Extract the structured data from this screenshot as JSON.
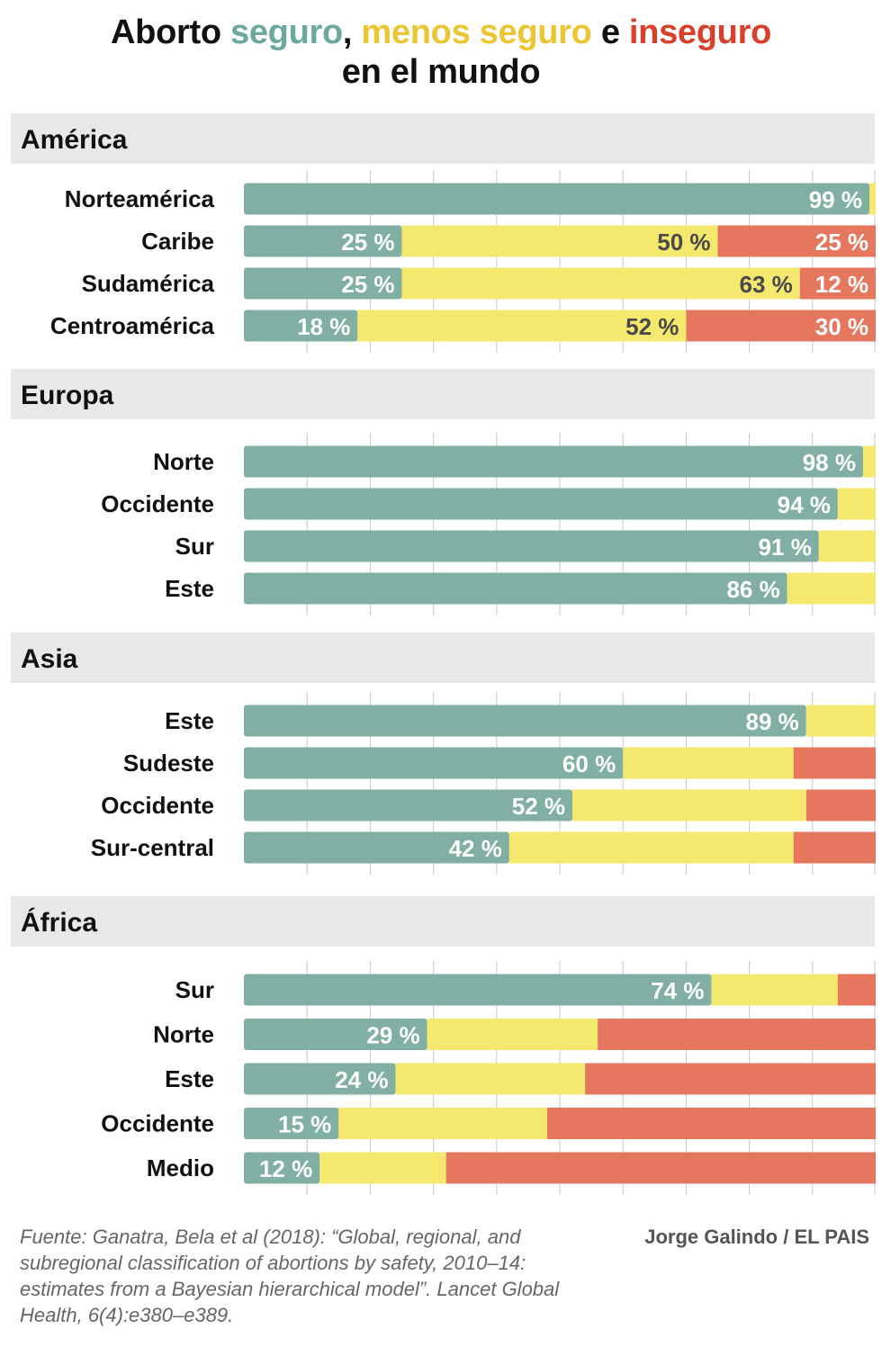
{
  "title": {
    "prefix": "Aborto ",
    "safe": "seguro",
    "sep": ", ",
    "less_safe": "menos seguro",
    "conj": " e ",
    "unsafe": "inseguro",
    "line2": "en el mundo"
  },
  "colors": {
    "safe": "#82afa3",
    "less_safe": "#f4e86e",
    "unsafe": "#e6775f",
    "band": "#e8e8e8",
    "grid": "#c8c8c8",
    "label_light": "#ffffff",
    "label_dark": "#4a4a4a"
  },
  "chart_data": {
    "type": "bar",
    "orientation": "horizontal",
    "stacked": true,
    "unit": "%",
    "xlim": [
      0,
      100
    ],
    "grid": true,
    "series": [
      {
        "name": "seguro",
        "key": "safe"
      },
      {
        "name": "menos seguro",
        "key": "less_safe"
      },
      {
        "name": "inseguro",
        "key": "unsafe"
      }
    ],
    "groups": [
      {
        "region": "América",
        "rows": [
          {
            "label": "Norteamérica",
            "safe": 99,
            "less_safe": 1,
            "unsafe": 0,
            "labels": [
              "99 %",
              "",
              ""
            ]
          },
          {
            "label": "Caribe",
            "safe": 25,
            "less_safe": 50,
            "unsafe": 25,
            "labels": [
              "25 %",
              "50 %",
              "25 %"
            ]
          },
          {
            "label": "Sudamérica",
            "safe": 25,
            "less_safe": 63,
            "unsafe": 12,
            "labels": [
              "25 %",
              "63 %",
              "12 %"
            ]
          },
          {
            "label": "Centroamérica",
            "safe": 18,
            "less_safe": 52,
            "unsafe": 30,
            "labels": [
              "18 %",
              "52 %",
              "30 %"
            ]
          }
        ]
      },
      {
        "region": "Europa",
        "rows": [
          {
            "label": "Norte",
            "safe": 98,
            "less_safe": 2,
            "unsafe": 0,
            "labels": [
              "98 %",
              "",
              ""
            ]
          },
          {
            "label": "Occidente",
            "safe": 94,
            "less_safe": 6,
            "unsafe": 0,
            "labels": [
              "94 %",
              "",
              ""
            ]
          },
          {
            "label": "Sur",
            "safe": 91,
            "less_safe": 9,
            "unsafe": 0,
            "labels": [
              "91 %",
              "",
              ""
            ]
          },
          {
            "label": "Este",
            "safe": 86,
            "less_safe": 14,
            "unsafe": 0,
            "labels": [
              "86 %",
              "",
              ""
            ]
          }
        ]
      },
      {
        "region": "Asia",
        "rows": [
          {
            "label": "Este",
            "safe": 89,
            "less_safe": 11,
            "unsafe": 0,
            "labels": [
              "89 %",
              "",
              ""
            ]
          },
          {
            "label": "Sudeste",
            "safe": 60,
            "less_safe": 27,
            "unsafe": 13,
            "labels": [
              "60 %",
              "",
              ""
            ]
          },
          {
            "label": "Occidente",
            "safe": 52,
            "less_safe": 37,
            "unsafe": 11,
            "labels": [
              "52 %",
              "",
              ""
            ]
          },
          {
            "label": "Sur-central",
            "safe": 42,
            "less_safe": 45,
            "unsafe": 13,
            "labels": [
              "42 %",
              "",
              ""
            ]
          }
        ]
      },
      {
        "region": "África",
        "rows": [
          {
            "label": "Sur",
            "safe": 74,
            "less_safe": 20,
            "unsafe": 6,
            "labels": [
              "74 %",
              "",
              ""
            ]
          },
          {
            "label": "Norte",
            "safe": 29,
            "less_safe": 27,
            "unsafe": 44,
            "labels": [
              "29 %",
              "",
              ""
            ]
          },
          {
            "label": "Este",
            "safe": 24,
            "less_safe": 30,
            "unsafe": 46,
            "labels": [
              "24 %",
              "",
              ""
            ]
          },
          {
            "label": "Occidente",
            "safe": 15,
            "less_safe": 33,
            "unsafe": 52,
            "labels": [
              "15 %",
              "",
              ""
            ]
          },
          {
            "label": "Medio",
            "safe": 12,
            "less_safe": 20,
            "unsafe": 68,
            "labels": [
              "12 %",
              "",
              ""
            ]
          }
        ]
      }
    ]
  },
  "footer": {
    "source": "Fuente: Ganatra, Bela et al (2018): “Global, regional, and subregional classification of abortions by safety, 2010–14: estimates from a Bayesian hierarchical model”. Lancet Global Health, 6(4):e380–e389.",
    "credit": "Jorge Galindo / EL PAIS"
  }
}
